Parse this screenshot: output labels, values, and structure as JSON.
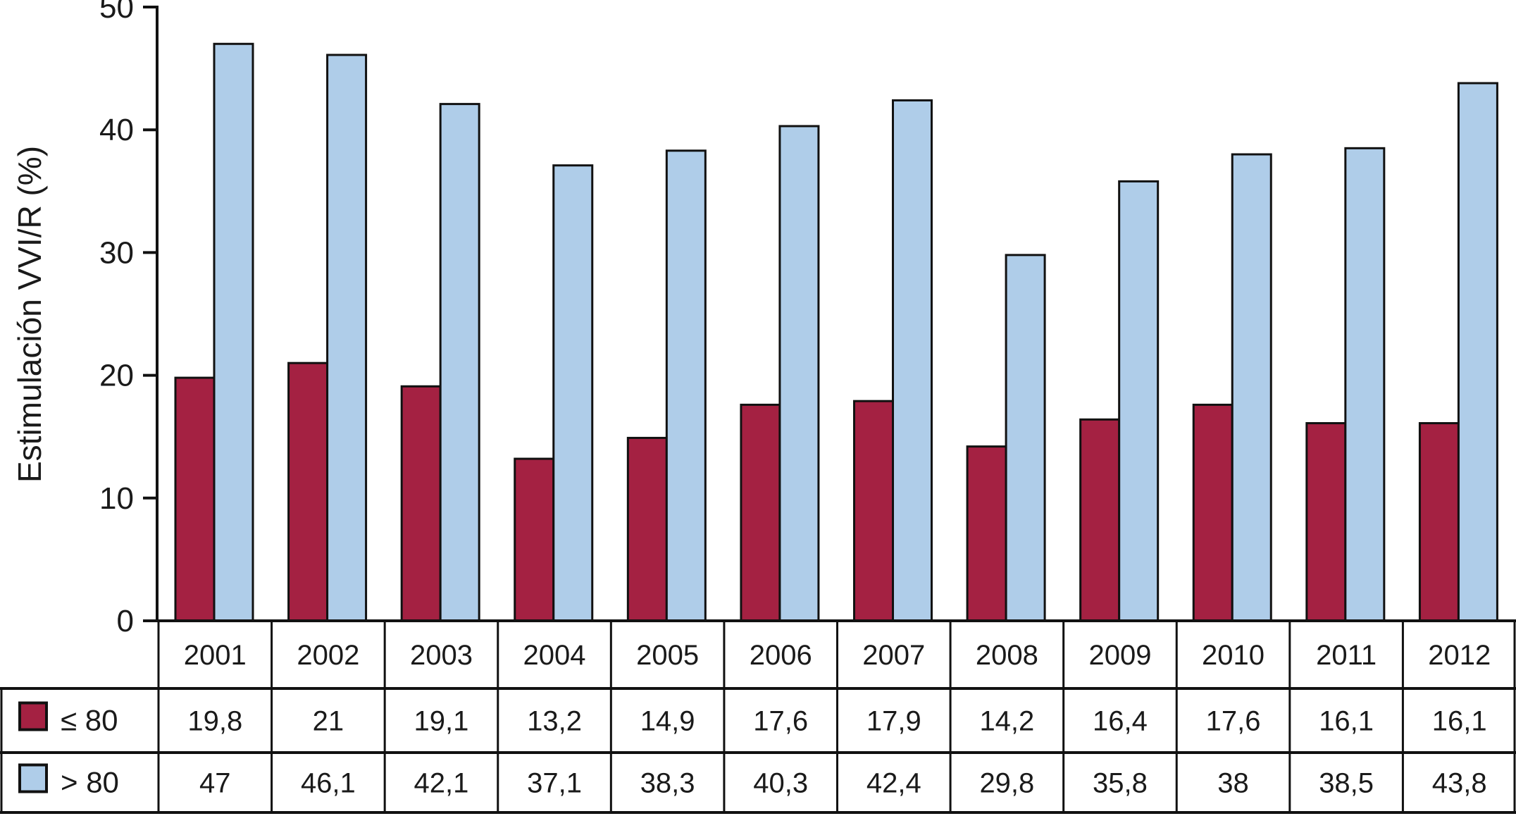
{
  "chart_data": {
    "type": "bar",
    "title": "",
    "xlabel": "",
    "ylabel": "Estimulación VVI/R (%)",
    "ylim": [
      0,
      50
    ],
    "yticks": [
      0,
      10,
      20,
      30,
      40,
      50
    ],
    "ytick_labels": [
      "0",
      "10",
      "20",
      "30",
      "40",
      "50"
    ],
    "grid": false,
    "legend_position": "table-left-column",
    "categories": [
      "2001",
      "2002",
      "2003",
      "2004",
      "2005",
      "2006",
      "2007",
      "2008",
      "2009",
      "2010",
      "2011",
      "2012"
    ],
    "series": [
      {
        "name": "≤ 80",
        "slug": "le-80",
        "color": "#A42142",
        "values": [
          19.8,
          21,
          19.1,
          13.2,
          14.9,
          17.6,
          17.9,
          14.2,
          16.4,
          17.6,
          16.1,
          16.1
        ],
        "display_values": [
          "19,8",
          "21",
          "19,1",
          "13,2",
          "14,9",
          "17,6",
          "17,9",
          "14,2",
          "16,4",
          "17,6",
          "16,1",
          "16,1"
        ]
      },
      {
        "name": "> 80",
        "slug": "gt-80",
        "color": "#AFCDE9",
        "values": [
          47,
          46.1,
          42.1,
          37.1,
          38.3,
          40.3,
          42.4,
          29.8,
          35.8,
          38,
          38.5,
          43.8
        ],
        "display_values": [
          "47",
          "46,1",
          "42,1",
          "37,1",
          "38,3",
          "40,3",
          "42,4",
          "29,8",
          "35,8",
          "38",
          "38,5",
          "43,8"
        ]
      }
    ],
    "bar_outline_color": "#111111",
    "axis_color": "#111111",
    "table_border_color": "#111111"
  }
}
